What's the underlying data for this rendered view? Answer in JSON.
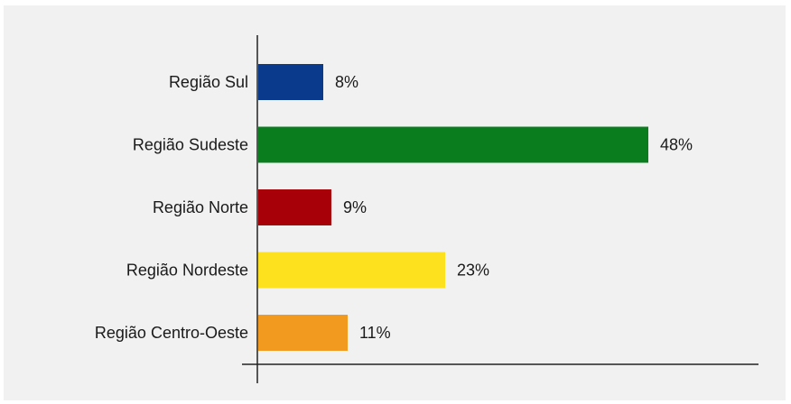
{
  "chart_data": {
    "type": "bar",
    "orientation": "horizontal",
    "categories": [
      "Região Sul",
      "Região Sudeste",
      "Região Norte",
      "Região Nordeste",
      "Região Centro-Oeste"
    ],
    "values": [
      8,
      48,
      9,
      23,
      11
    ],
    "value_labels": [
      "8%",
      "48%",
      "9%",
      "23%",
      "11%"
    ],
    "colors": [
      "#0a3a8c",
      "#0a7d1f",
      "#a80008",
      "#fde01e",
      "#f19a1f"
    ],
    "xlim": [
      0,
      60
    ],
    "grid": false,
    "legend": "none",
    "title": "",
    "xlabel": "",
    "ylabel": ""
  }
}
